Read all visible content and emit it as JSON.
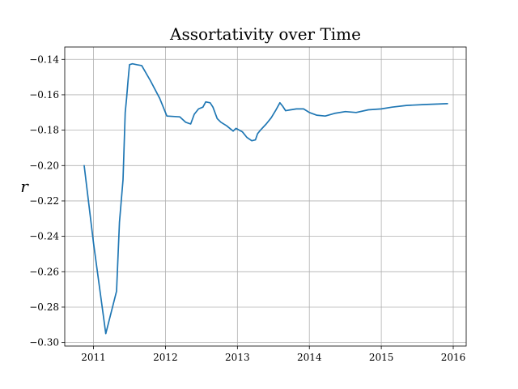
{
  "chart_data": {
    "type": "line",
    "title": "Assortativity over Time",
    "xlabel": "",
    "ylabel": "r",
    "xlim": [
      2010.6,
      2016.18
    ],
    "ylim": [
      -0.302,
      -0.133
    ],
    "grid": true,
    "line_color": "#1f77b4",
    "x_ticks": [
      {
        "value": 2011,
        "label": "2011"
      },
      {
        "value": 2012,
        "label": "2012"
      },
      {
        "value": 2013,
        "label": "2013"
      },
      {
        "value": 2014,
        "label": "2014"
      },
      {
        "value": 2015,
        "label": "2015"
      },
      {
        "value": 2016,
        "label": "2016"
      }
    ],
    "y_ticks": [
      {
        "value": -0.14,
        "label": "−0.14"
      },
      {
        "value": -0.16,
        "label": "−0.16"
      },
      {
        "value": -0.18,
        "label": "−0.18"
      },
      {
        "value": -0.2,
        "label": "−0.20"
      },
      {
        "value": -0.22,
        "label": "−0.22"
      },
      {
        "value": -0.24,
        "label": "−0.24"
      },
      {
        "value": -0.26,
        "label": "−0.26"
      },
      {
        "value": -0.28,
        "label": "−0.28"
      },
      {
        "value": -0.3,
        "label": "−0.30"
      }
    ],
    "series": [
      {
        "x": [
          2010.87,
          2011.0,
          2011.17,
          2011.32,
          2011.36,
          2011.41,
          2011.44,
          2011.46,
          2011.48,
          2011.5,
          2011.54,
          2011.6,
          2011.67,
          2011.79,
          2011.92,
          2012.02,
          2012.2,
          2012.28,
          2012.35,
          2012.4,
          2012.46,
          2012.52,
          2012.56,
          2012.62,
          2012.66,
          2012.72,
          2012.77,
          2012.85,
          2012.94,
          2012.98,
          2013.07,
          2013.13,
          2013.2,
          2013.25,
          2013.28,
          2013.32,
          2013.4,
          2013.47,
          2013.53,
          2013.59,
          2013.63,
          2013.67,
          2013.74,
          2013.82,
          2013.92,
          2014.0,
          2014.1,
          2014.22,
          2014.35,
          2014.5,
          2014.65,
          2014.82,
          2015.0,
          2015.15,
          2015.35,
          2015.6,
          2015.92
        ],
        "y": [
          -0.2,
          -0.244,
          -0.295,
          -0.271,
          -0.232,
          -0.208,
          -0.17,
          -0.162,
          -0.152,
          -0.143,
          -0.1425,
          -0.143,
          -0.1435,
          -0.152,
          -0.162,
          -0.172,
          -0.1725,
          -0.1755,
          -0.1765,
          -0.171,
          -0.168,
          -0.167,
          -0.164,
          -0.1645,
          -0.167,
          -0.1735,
          -0.1755,
          -0.1775,
          -0.1805,
          -0.179,
          -0.181,
          -0.184,
          -0.186,
          -0.1855,
          -0.182,
          -0.18,
          -0.1765,
          -0.173,
          -0.169,
          -0.1645,
          -0.1665,
          -0.169,
          -0.1685,
          -0.168,
          -0.168,
          -0.17,
          -0.1715,
          -0.172,
          -0.1705,
          -0.1695,
          -0.17,
          -0.1685,
          -0.168,
          -0.167,
          -0.166,
          -0.1655,
          -0.165
        ]
      }
    ]
  }
}
